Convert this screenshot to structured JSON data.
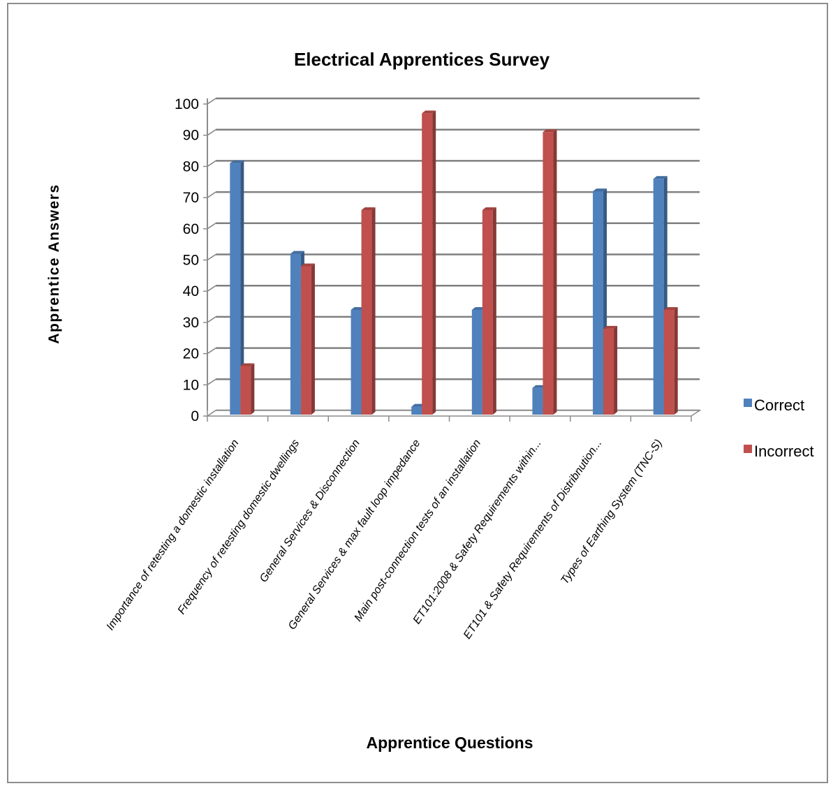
{
  "chart_data": {
    "type": "bar",
    "title": "Electrical Apprentices Survey",
    "xlabel": "Apprentice Questions",
    "ylabel": "Apprentice Answers",
    "ylim": [
      0,
      100
    ],
    "yticks": [
      0,
      10,
      20,
      30,
      40,
      50,
      60,
      70,
      80,
      90,
      100
    ],
    "grid": true,
    "legend_position": "right",
    "categories": [
      "Importance of retesting a domestic installation",
      "Frequency of retesting domestic dwellings",
      "General Services & Disconnection",
      "General Services & max fault loop impedance",
      "Main post-connection tests of an installation",
      "ET101:2008 & Safety Requirements within...",
      "ET101 & Safety Requirements of Distribnution...",
      "Types of Earthing System (TNC-S)"
    ],
    "series": [
      {
        "name": "Correct",
        "color": "#4f81bd",
        "values": [
          81,
          52,
          34,
          3,
          34,
          9,
          72,
          76
        ]
      },
      {
        "name": "Incorrect",
        "color": "#c0504d",
        "values": [
          16,
          48,
          66,
          97,
          66,
          91,
          28,
          34
        ]
      }
    ]
  }
}
